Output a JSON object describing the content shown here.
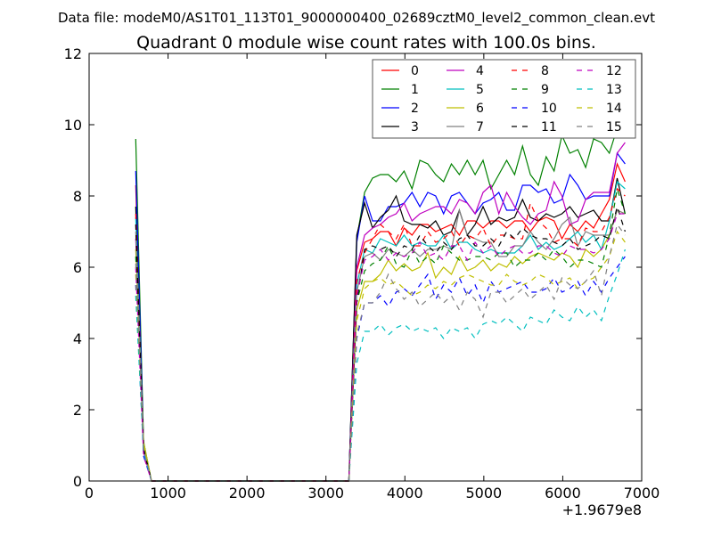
{
  "chart_data": {
    "type": "line",
    "suptitle": "Data file: modeM0/AS1T01_113T01_9000000400_02689cztM0_level2_common_clean.evt",
    "title": "Quadrant 0 module wise count rates with 100.0s bins.",
    "xlabel": "",
    "ylabel": "",
    "xlim": [
      0,
      7000
    ],
    "ylim": [
      0,
      12
    ],
    "x_offset_label": "+1.9679e8",
    "xticks": [
      "0",
      "1000",
      "2000",
      "3000",
      "4000",
      "5000",
      "6000",
      "7000"
    ],
    "yticks": [
      "0",
      "2",
      "4",
      "6",
      "8",
      "10",
      "12"
    ],
    "xtick_values": [
      0,
      1000,
      2000,
      3000,
      4000,
      5000,
      6000,
      7000
    ],
    "ytick_values": [
      0,
      2,
      4,
      6,
      8,
      10,
      12
    ],
    "grid": false,
    "legend_position": "top-right",
    "legend_columns": 4,
    "x_early": [
      590,
      690,
      790
    ],
    "zero_until": 3290,
    "x_late_start": 3390,
    "x_step": 100,
    "series": [
      {
        "name": "0",
        "color": "#ff0000",
        "dashed": false,
        "early": [
          8.3,
          0.9,
          0
        ],
        "late": [
          5.9,
          6.7,
          6.8,
          7.0,
          7.0,
          6.6,
          7.1,
          6.9,
          7.2,
          7.2,
          7.0,
          7.1,
          7.2,
          6.9,
          7.3,
          7.3,
          7.1,
          7.3,
          7.3,
          7.1,
          7.3,
          7.3,
          7.0,
          7.3,
          7.4,
          7.3,
          6.8,
          7.2,
          7.0,
          7.3,
          7.1,
          7.5,
          7.9,
          8.9,
          8.4
        ]
      },
      {
        "name": "1",
        "color": "#008000",
        "dashed": false,
        "early": [
          9.6,
          1.1,
          0
        ],
        "late": [
          6.8,
          8.1,
          8.5,
          8.6,
          8.6,
          8.4,
          8.7,
          8.2,
          9.0,
          8.9,
          8.6,
          8.4,
          8.9,
          8.6,
          9.0,
          8.6,
          9.0,
          8.2,
          8.6,
          9.0,
          8.6,
          9.4,
          8.6,
          8.3,
          9.1,
          8.7,
          9.7,
          9.2,
          9.3,
          8.8,
          9.6,
          9.5,
          9.2,
          9.9,
          10.3
        ]
      },
      {
        "name": "2",
        "color": "#0000ff",
        "dashed": false,
        "early": [
          8.7,
          1.0,
          0
        ],
        "late": [
          6.7,
          8.0,
          7.3,
          7.3,
          7.7,
          7.7,
          7.8,
          8.1,
          7.7,
          8.1,
          8.0,
          7.5,
          8.0,
          8.1,
          7.8,
          7.5,
          7.8,
          7.9,
          8.1,
          7.6,
          7.6,
          8.3,
          8.3,
          8.1,
          8.2,
          7.8,
          7.9,
          8.6,
          8.3,
          7.9,
          8.0,
          8.0,
          8.0,
          9.2,
          8.9
        ]
      },
      {
        "name": "3",
        "color": "#000000",
        "dashed": false,
        "early": [
          7.7,
          0.9,
          0
        ],
        "late": [
          6.9,
          7.8,
          7.1,
          7.4,
          7.6,
          8.0,
          7.3,
          7.2,
          7.2,
          7.1,
          7.3,
          6.9,
          7.0,
          7.6,
          6.9,
          7.2,
          7.7,
          7.2,
          7.4,
          7.3,
          7.4,
          7.9,
          7.4,
          7.3,
          7.5,
          7.4,
          7.5,
          7.7,
          7.4,
          7.5,
          7.6,
          7.3,
          7.3,
          8.5,
          7.5
        ]
      },
      {
        "name": "4",
        "color": "#bf00bf",
        "dashed": false,
        "early": [
          6.8,
          0.8,
          0
        ],
        "late": [
          6.0,
          6.9,
          7.1,
          7.2,
          7.4,
          7.5,
          7.8,
          7.3,
          7.5,
          7.6,
          7.7,
          7.7,
          7.5,
          7.9,
          7.8,
          7.5,
          8.1,
          8.3,
          7.5,
          8.1,
          7.7,
          7.4,
          7.2,
          7.5,
          7.6,
          8.4,
          8.0,
          7.2,
          7.3,
          7.9,
          8.1,
          8.1,
          8.1,
          9.2,
          9.5
        ]
      },
      {
        "name": "5",
        "color": "#00bfbf",
        "dashed": false,
        "early": [
          7.4,
          0.9,
          0
        ],
        "late": [
          5.5,
          6.5,
          6.4,
          6.8,
          6.7,
          6.6,
          6.9,
          6.6,
          6.7,
          6.6,
          6.6,
          6.9,
          6.5,
          6.7,
          6.7,
          6.5,
          6.4,
          6.5,
          6.4,
          6.4,
          6.4,
          6.6,
          6.9,
          6.5,
          6.7,
          6.5,
          6.6,
          6.8,
          7.0,
          6.7,
          6.9,
          6.5,
          7.3,
          8.4,
          8.2
        ]
      },
      {
        "name": "6",
        "color": "#bfbf00",
        "dashed": false,
        "early": [
          6.5,
          1.1,
          0
        ],
        "late": [
          4.8,
          5.6,
          5.6,
          5.8,
          6.2,
          5.9,
          6.1,
          5.9,
          6.0,
          6.4,
          5.7,
          6.0,
          5.8,
          6.3,
          5.9,
          6.0,
          6.2,
          5.9,
          6.1,
          6.0,
          6.3,
          6.1,
          6.3,
          6.4,
          6.3,
          6.2,
          6.4,
          6.3,
          6.0,
          6.5,
          6.3,
          6.5,
          6.9,
          7.6,
          7.5
        ]
      },
      {
        "name": "7",
        "color": "#808080",
        "dashed": false,
        "early": [
          7.0,
          0.9,
          0
        ],
        "late": [
          5.3,
          6.3,
          6.4,
          6.2,
          6.5,
          6.4,
          6.3,
          6.5,
          6.3,
          6.5,
          6.5,
          6.6,
          6.5,
          7.6,
          6.9,
          6.8,
          6.7,
          6.7,
          6.3,
          6.3,
          6.6,
          6.6,
          7.0,
          6.7,
          6.5,
          6.8,
          7.2,
          7.4,
          6.6,
          7.0,
          6.9,
          6.9,
          6.9,
          7.6,
          7.5
        ]
      },
      {
        "name": "8",
        "color": "#ff0000",
        "dashed": true,
        "early": [
          7.5,
          0.8,
          0
        ],
        "late": [
          5.6,
          6.4,
          6.8,
          7.2,
          7.0,
          6.8,
          7.2,
          6.6,
          6.6,
          7.0,
          6.7,
          6.8,
          7.0,
          6.6,
          6.9,
          6.8,
          7.1,
          6.6,
          6.9,
          6.9,
          6.8,
          6.8,
          7.8,
          7.3,
          7.1,
          6.7,
          6.8,
          6.8,
          6.6,
          7.1,
          7.0,
          7.0,
          7.4,
          8.2,
          8.0
        ]
      },
      {
        "name": "9",
        "color": "#008000",
        "dashed": true,
        "early": [
          6.3,
          0.9,
          0
        ],
        "late": [
          5.0,
          5.9,
          6.1,
          6.2,
          6.6,
          6.1,
          6.0,
          6.5,
          6.1,
          6.3,
          6.1,
          6.6,
          6.4,
          6.2,
          6.2,
          6.3,
          6.3,
          6.2,
          6.4,
          6.4,
          6.0,
          6.2,
          6.2,
          6.4,
          6.2,
          6.5,
          6.3,
          6.0,
          6.2,
          6.2,
          6.1,
          6.0,
          6.9,
          8.2,
          7.5
        ]
      },
      {
        "name": "10",
        "color": "#0000ff",
        "dashed": true,
        "early": [
          5.5,
          0.7,
          0
        ],
        "late": [
          4.0,
          5.0,
          5.0,
          5.2,
          4.9,
          5.3,
          5.4,
          5.2,
          5.5,
          5.8,
          5.1,
          5.5,
          5.3,
          5.7,
          5.2,
          5.5,
          5.0,
          5.6,
          5.3,
          5.4,
          5.5,
          5.6,
          5.3,
          5.3,
          5.4,
          5.7,
          5.3,
          5.4,
          5.6,
          5.2,
          5.6,
          5.3,
          5.7,
          6.0,
          6.3
        ]
      },
      {
        "name": "11",
        "color": "#000000",
        "dashed": true,
        "early": [
          7.2,
          0.9,
          0
        ],
        "late": [
          5.0,
          6.5,
          6.6,
          6.5,
          6.6,
          6.3,
          6.6,
          6.5,
          6.9,
          6.6,
          6.4,
          6.7,
          6.5,
          6.8,
          6.9,
          6.6,
          6.6,
          6.8,
          6.6,
          7.0,
          6.8,
          7.1,
          6.9,
          6.8,
          6.8,
          6.7,
          6.6,
          6.8,
          6.5,
          6.6,
          6.7,
          6.9,
          6.8,
          7.7,
          7.0
        ]
      },
      {
        "name": "12",
        "color": "#bf00bf",
        "dashed": true,
        "early": [
          6.0,
          0.7,
          0
        ],
        "late": [
          5.2,
          6.2,
          6.3,
          6.5,
          6.2,
          6.4,
          6.3,
          6.4,
          6.7,
          6.3,
          6.4,
          6.2,
          6.6,
          6.6,
          6.2,
          6.7,
          6.4,
          6.6,
          6.3,
          6.5,
          6.6,
          6.4,
          6.4,
          6.6,
          6.6,
          6.4,
          6.3,
          6.6,
          6.5,
          6.5,
          6.4,
          6.5,
          6.8,
          7.5,
          7.5
        ]
      },
      {
        "name": "13",
        "color": "#00bfbf",
        "dashed": true,
        "early": [
          5.2,
          0.8,
          0
        ],
        "late": [
          3.3,
          4.2,
          4.2,
          4.4,
          4.1,
          4.3,
          4.4,
          4.2,
          4.3,
          4.2,
          4.3,
          4.0,
          4.3,
          4.2,
          4.3,
          4.0,
          4.4,
          4.5,
          4.4,
          4.6,
          4.4,
          4.2,
          4.6,
          4.5,
          4.4,
          4.8,
          4.6,
          4.5,
          4.9,
          4.6,
          4.8,
          4.5,
          5.2,
          5.8,
          6.5
        ]
      },
      {
        "name": "14",
        "color": "#bfbf00",
        "dashed": true,
        "early": [
          5.8,
          1.0,
          0
        ],
        "late": [
          4.5,
          5.4,
          5.6,
          5.7,
          5.5,
          5.6,
          5.4,
          5.2,
          5.3,
          5.5,
          5.4,
          5.6,
          5.5,
          5.7,
          5.8,
          5.7,
          5.6,
          5.5,
          5.5,
          5.8,
          5.6,
          5.5,
          5.6,
          5.8,
          5.7,
          5.5,
          5.6,
          5.7,
          5.4,
          5.6,
          5.7,
          6.0,
          6.3,
          7.0,
          6.7
        ]
      },
      {
        "name": "15",
        "color": "#808080",
        "dashed": true,
        "early": [
          6.1,
          0.9,
          0
        ],
        "late": [
          4.1,
          5.0,
          5.0,
          5.3,
          5.8,
          5.4,
          5.1,
          5.3,
          4.9,
          5.1,
          5.3,
          5.0,
          5.2,
          4.8,
          5.3,
          5.1,
          4.6,
          5.3,
          5.3,
          5.0,
          5.2,
          5.4,
          5.1,
          5.3,
          5.5,
          5.1,
          5.7,
          5.5,
          5.4,
          5.6,
          5.9,
          5.2,
          6.3,
          7.2,
          6.9
        ]
      }
    ]
  }
}
